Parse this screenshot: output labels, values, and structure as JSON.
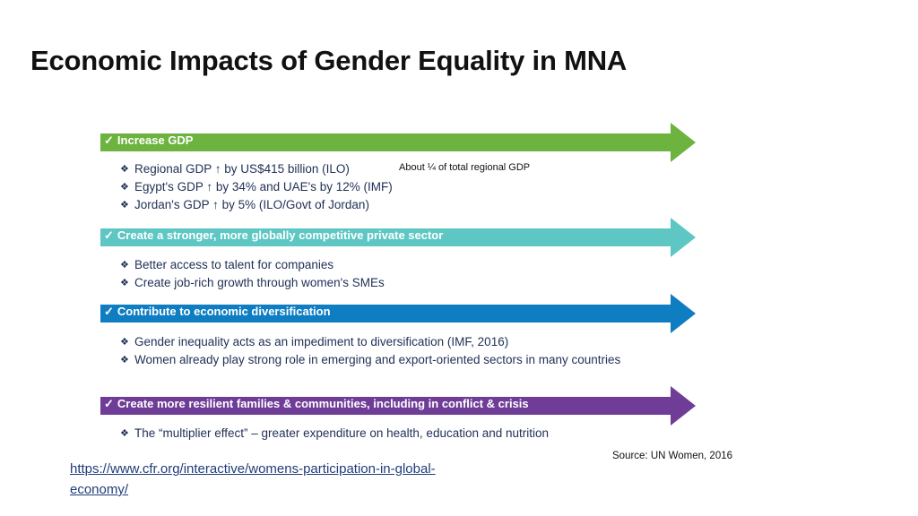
{
  "title": "Economic Impacts of Gender Equality in MNA",
  "sections": [
    {
      "label": "Increase GDP",
      "color": "#6db33f",
      "bullets": [
        "Regional GDP ↑ by US$415 billion (ILO)",
        "Egypt's GDP ↑ by 34% and UAE's by 12% (IMF)",
        "Jordan's GDP ↑ by 5% (ILO/Govt of Jordan)"
      ]
    },
    {
      "label": "Create a stronger, more globally competitive private sector",
      "color": "#5ec7c4",
      "bullets": [
        "Better access to talent for companies",
        "Create job-rich growth through women's SMEs"
      ]
    },
    {
      "label": "Contribute to economic diversification",
      "color": "#0f7dc2",
      "bullets": [
        "Gender inequality acts as an impediment to diversification (IMF, 2016)",
        "Women already play strong role in emerging and export-oriented sectors in many countries"
      ]
    },
    {
      "label": "Create more resilient families & communities, including in conflict & crisis",
      "color": "#6f3d97",
      "bullets": [
        "The “multiplier effect” – greater expenditure on health, education and nutrition"
      ]
    }
  ],
  "check_glyph": "✓",
  "bullet_glyph": "❖",
  "note": "About ¼ of total regional GDP",
  "source": "Source: UN Women, 2016",
  "link": "https://www.cfr.org/interactive/womens-participation-in-global-economy/"
}
